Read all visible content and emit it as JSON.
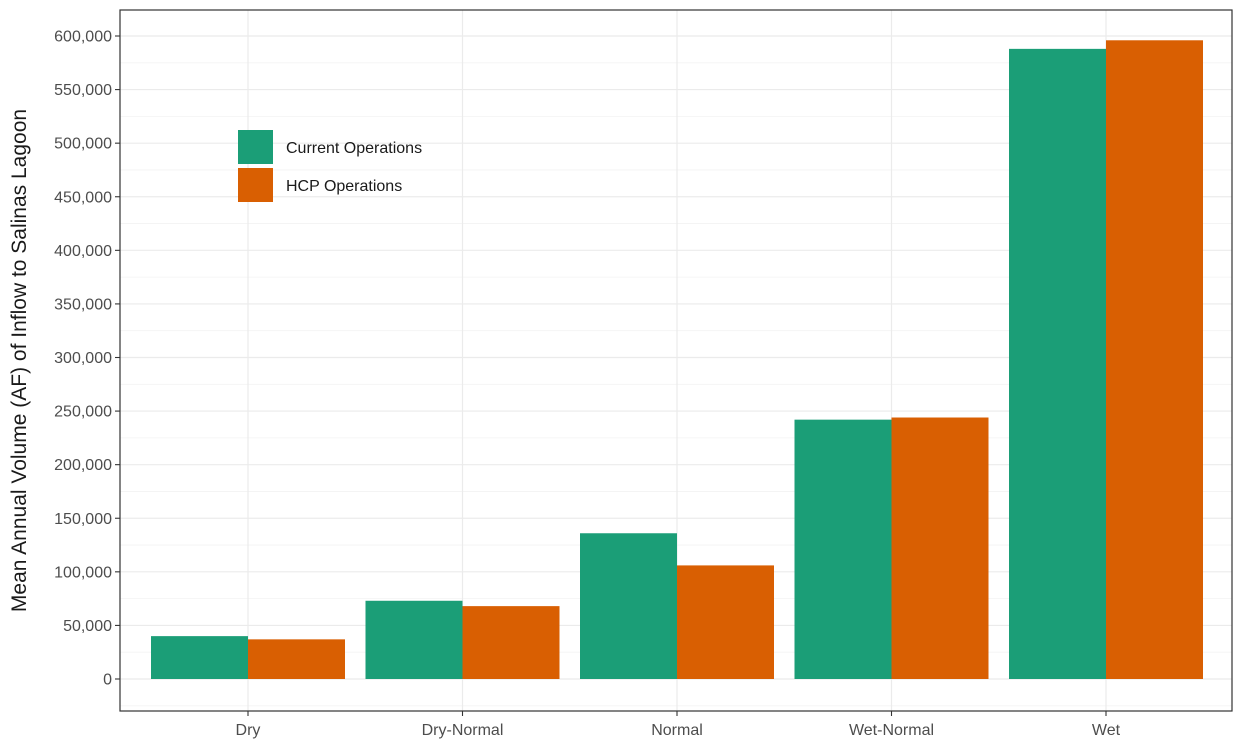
{
  "chart_data": {
    "type": "bar",
    "ylabel": "Mean Annual Volume (AF) of Inflow to Salinas Lagoon",
    "xlabel": "",
    "categories": [
      "Dry",
      "Dry-Normal",
      "Normal",
      "Wet-Normal",
      "Wet"
    ],
    "series": [
      {
        "name": "Current Operations",
        "color": "#1b9e77",
        "values": [
          40000,
          73000,
          136000,
          242000,
          588000
        ]
      },
      {
        "name": "HCP Operations",
        "color": "#d95f02",
        "values": [
          37000,
          68000,
          106000,
          244000,
          596000
        ]
      }
    ],
    "ylim": [
      -25000,
      620000
    ],
    "yticks": [
      0,
      50000,
      100000,
      150000,
      200000,
      250000,
      300000,
      350000,
      400000,
      450000,
      500000,
      550000,
      600000
    ],
    "ytick_labels": [
      "0",
      "50,000",
      "100,000",
      "150,000",
      "200,000",
      "250,000",
      "300,000",
      "350,000",
      "400,000",
      "450,000",
      "500,000",
      "550,000",
      "600,000"
    ],
    "grid": true,
    "legend_position": "top-left"
  }
}
